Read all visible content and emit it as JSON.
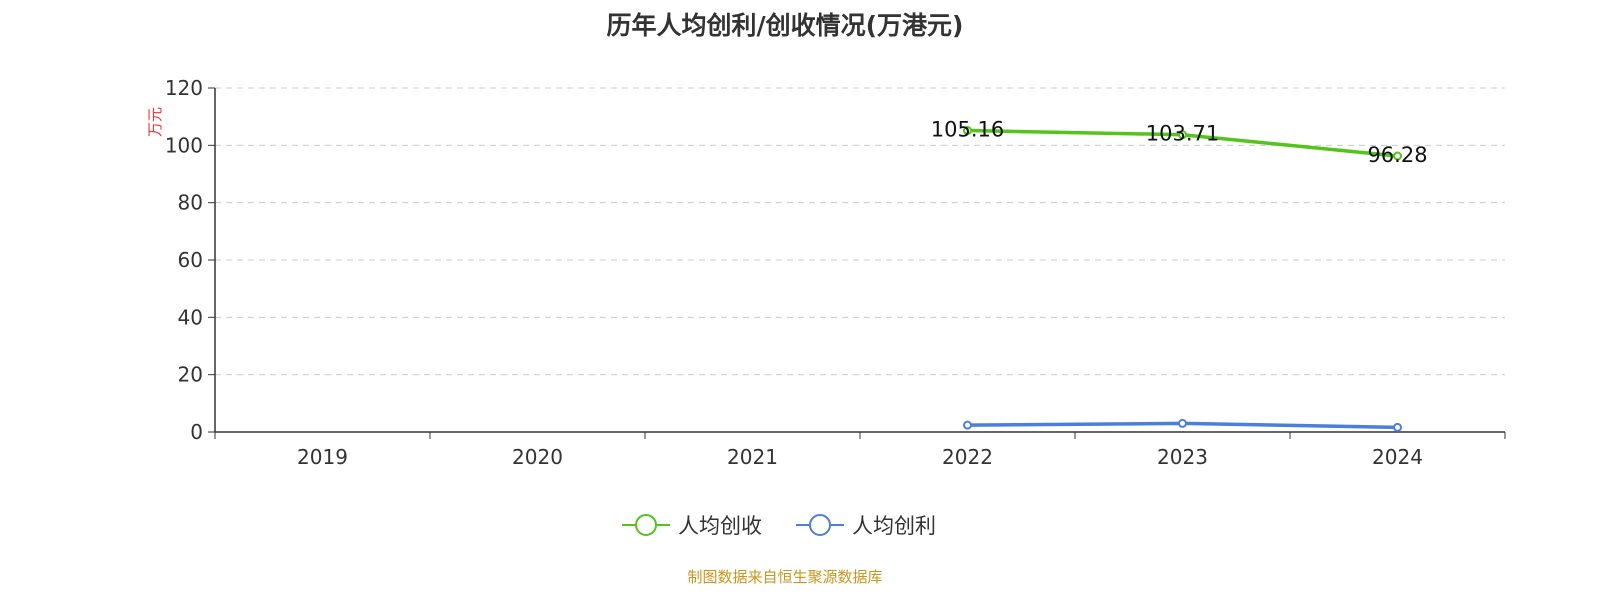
{
  "chart_data": {
    "type": "line",
    "title": "历年人均创利/创收情况(万港元)",
    "ylabel": "万元",
    "ylim": [
      0,
      120
    ],
    "yticks": [
      0,
      20,
      40,
      60,
      80,
      100,
      120
    ],
    "grid": true,
    "legend_placement": "bottom",
    "categories": [
      "2019",
      "2020",
      "2021",
      "2022",
      "2023",
      "2024"
    ],
    "series": [
      {
        "name": "人均创收",
        "color": "#52c41a",
        "values": [
          null,
          null,
          null,
          105.16,
          103.71,
          96.28
        ],
        "labels": [
          "",
          "",
          "",
          "105.16",
          "103.71",
          "96.28"
        ]
      },
      {
        "name": "人均创利",
        "color": "#4a7fdc",
        "values": [
          null,
          null,
          null,
          2.4,
          3.0,
          1.6
        ]
      }
    ]
  },
  "source": "制图数据来自恒生聚源数据库"
}
